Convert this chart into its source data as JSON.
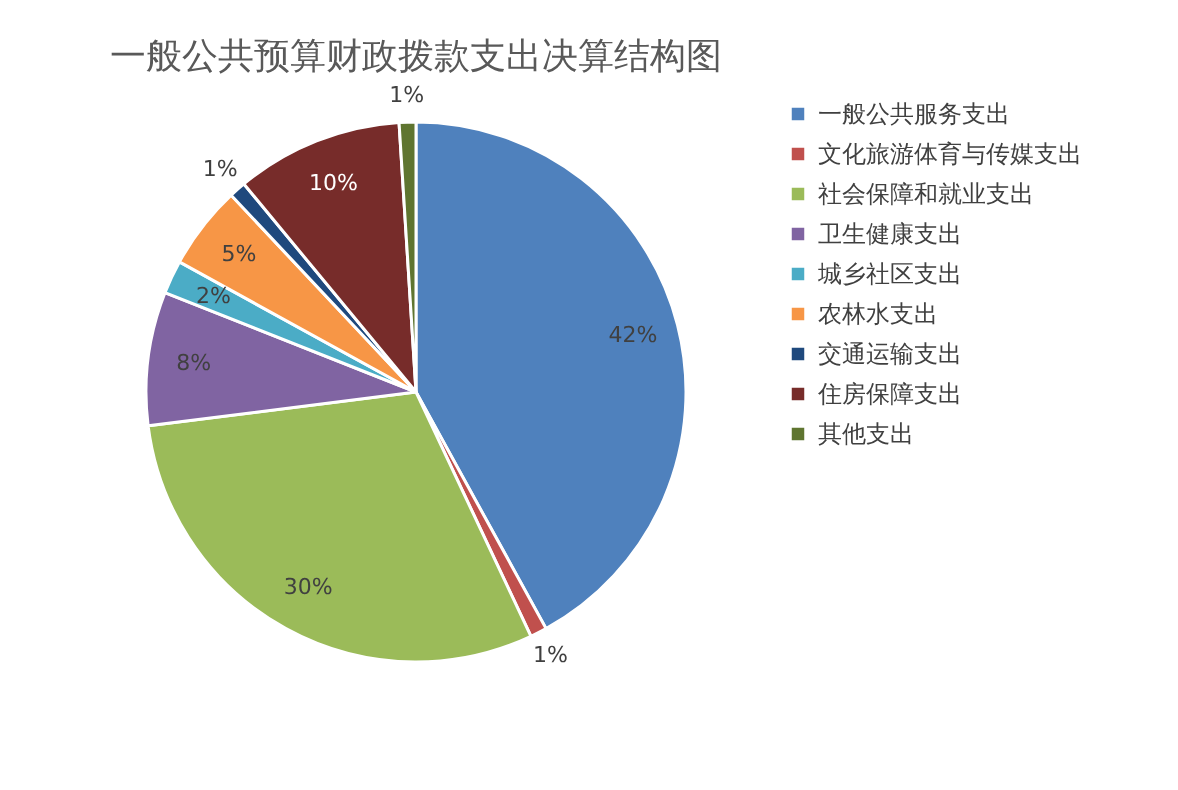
{
  "chart_data": {
    "type": "pie",
    "title": "一般公共预算财政拨款支出决算结构图",
    "categories": [
      "一般公共服务支出",
      "文化旅游体育与传媒支出",
      "社会保障和就业支出",
      "卫生健康支出",
      "城乡社区支出",
      "农林水支出",
      "交通运输支出",
      "住房保障支出",
      "其他支出"
    ],
    "values": [
      42,
      1,
      30,
      8,
      2,
      5,
      1,
      10,
      1
    ],
    "value_labels": [
      "42%",
      "1%",
      "30%",
      "8%",
      "2%",
      "5%",
      "1%",
      "10%",
      "1%"
    ],
    "colors": [
      "#4f81bd",
      "#c0504d",
      "#9bbb59",
      "#8064a2",
      "#4bacc6",
      "#f79646",
      "#1f497d",
      "#772c2a",
      "#5f7530"
    ],
    "legend": "right"
  }
}
